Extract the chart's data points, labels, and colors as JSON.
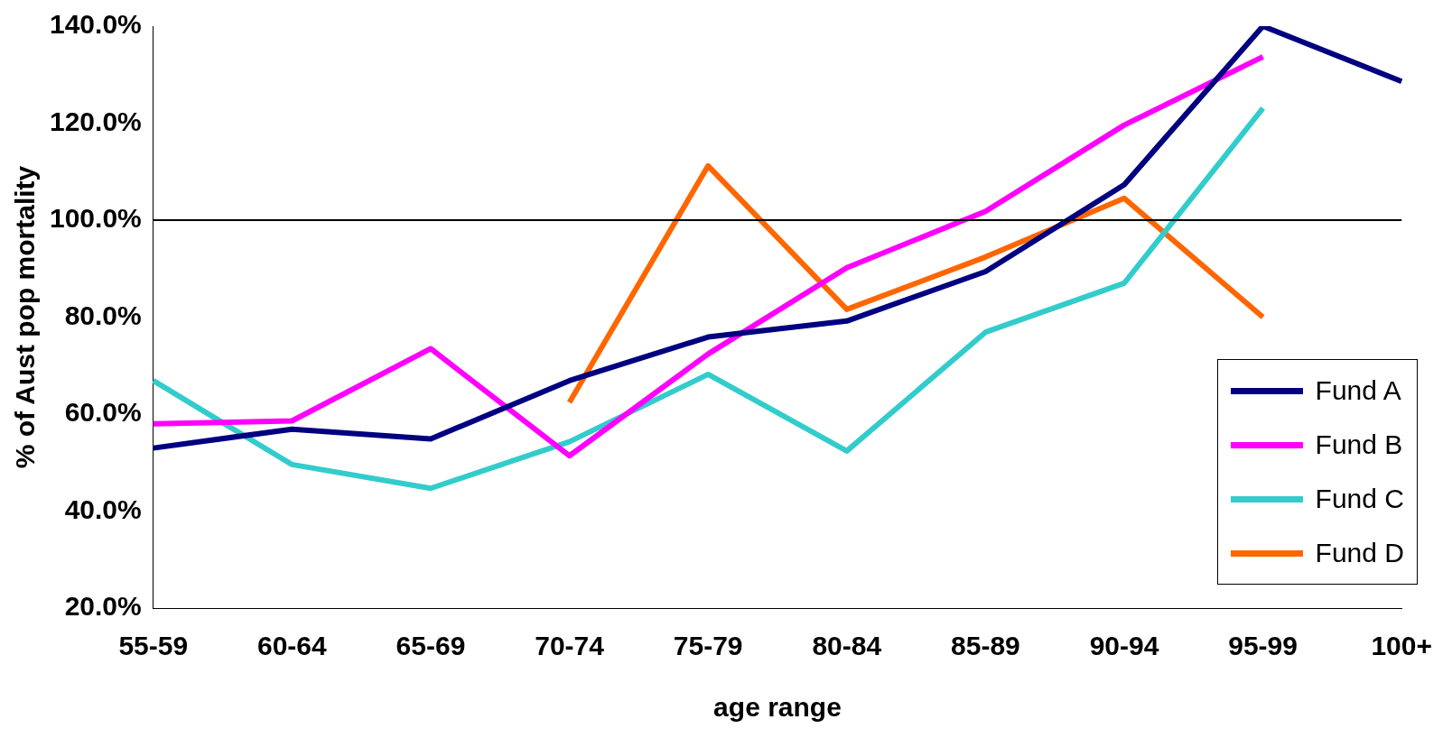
{
  "chart_data": {
    "type": "line",
    "xlabel": "age range",
    "ylabel": "% of Aust pop mortality",
    "categories": [
      "55-59",
      "60-64",
      "65-69",
      "70-74",
      "75-79",
      "80-84",
      "85-89",
      "90-94",
      "95-99",
      "100+"
    ],
    "series": [
      {
        "name": "Fund A",
        "color": "#000080",
        "values": [
          53,
          56.9,
          54.9,
          66.9,
          75.9,
          79.2,
          89.4,
          107.3,
          140,
          128.6
        ]
      },
      {
        "name": "Fund B",
        "color": "#ff00ff",
        "values": [
          58,
          58.6,
          73.5,
          51.4,
          72.4,
          90.2,
          101.8,
          119.6,
          133.7,
          null
        ]
      },
      {
        "name": "Fund C",
        "color": "#33cccc",
        "values": [
          66.9,
          49.6,
          44.7,
          54.3,
          68.2,
          52.4,
          76.9,
          87,
          123.1,
          null
        ]
      },
      {
        "name": "Fund D",
        "color": "#ff6600",
        "values": [
          null,
          null,
          null,
          62.4,
          111.2,
          81.6,
          92.4,
          104.5,
          80,
          null
        ]
      }
    ],
    "ylim": [
      20,
      140
    ],
    "yticks": [
      {
        "value": 20,
        "label": "20.0%"
      },
      {
        "value": 40,
        "label": "40.0%"
      },
      {
        "value": 60,
        "label": "60.0%"
      },
      {
        "value": 80,
        "label": "80.0%"
      },
      {
        "value": 100,
        "label": "100.0%"
      },
      {
        "value": 120,
        "label": "120.0%"
      },
      {
        "value": 140,
        "label": "140.0%"
      }
    ],
    "ref_lines": [
      {
        "axis": "y",
        "value": 100,
        "color": "#000000"
      }
    ],
    "grid": false,
    "legend": "bottom right",
    "marker": "none",
    "line_style": "solid"
  }
}
